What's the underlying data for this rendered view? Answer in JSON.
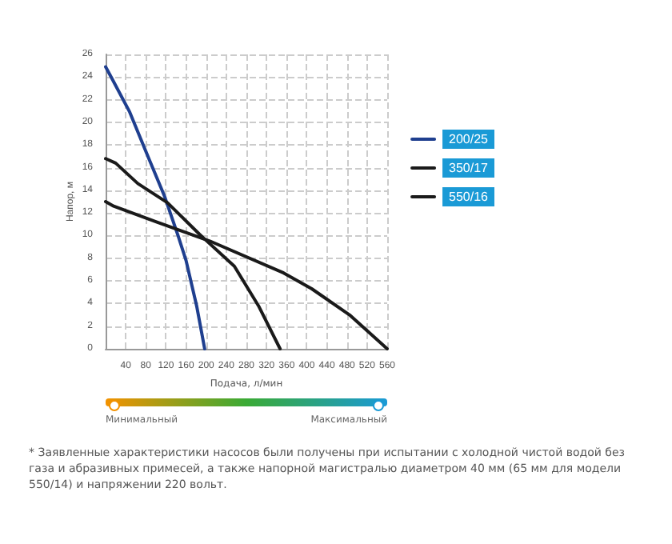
{
  "chart_data": {
    "type": "line",
    "xlabel": "Подача, л/мин",
    "ylabel": "Напор, м",
    "xlim": [
      0,
      560
    ],
    "xticks": [
      40,
      80,
      120,
      160,
      200,
      240,
      280,
      320,
      360,
      400,
      440,
      480,
      520,
      560
    ],
    "ylim": [
      0,
      26
    ],
    "yticks": [
      0,
      2,
      4,
      6,
      8,
      10,
      12,
      14,
      16,
      18,
      20,
      22,
      24,
      26
    ],
    "grid": true,
    "legend": "right",
    "marker": "none",
    "line_style": "solid",
    "series": [
      {
        "name": "200/25",
        "color": "#1f3f8f",
        "x": [
          0,
          11,
          48,
          85,
          117,
          144,
          160,
          181,
          197
        ],
        "values": [
          24.9,
          24,
          20.9,
          16.9,
          13.5,
          10,
          7.8,
          3.8,
          0
        ]
      },
      {
        "name": "350/17",
        "color": "#1a1a1a",
        "x": [
          0,
          20,
          64,
          123,
          187,
          256,
          304,
          347
        ],
        "values": [
          16.8,
          16.4,
          14.6,
          12.9,
          10.1,
          7.3,
          3.8,
          0
        ]
      },
      {
        "name": "550/16",
        "color": "#1a1a1a",
        "x": [
          0,
          16,
          101,
          208,
          354,
          410,
          485,
          560
        ],
        "values": [
          13,
          12.6,
          11.2,
          9.5,
          6.7,
          5.3,
          3,
          0
        ]
      }
    ],
    "annotations": [
      "Минимальный",
      "Максимальный",
      "* Заявленные характеристики насосов были получены при испытании с холодной чистой водой без газа и абразивных примесей, а также напорной магистралью диаметром 40 мм (65 мм для модели 550/14) и напряжении 220 вольт."
    ]
  }
}
